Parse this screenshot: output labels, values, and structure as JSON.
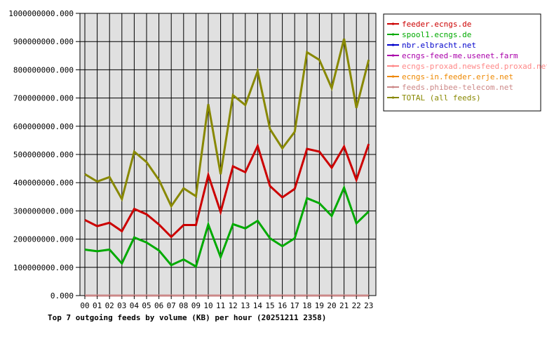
{
  "chart_data": {
    "type": "line",
    "title": "Top 7 outgoing feeds by volume (KB) per hour (20251211 2358)",
    "xlabel": "",
    "ylabel": "",
    "ylim": [
      0,
      1000000000
    ],
    "y_ticks": [
      0,
      100000000,
      200000000,
      300000000,
      400000000,
      500000000,
      600000000,
      700000000,
      800000000,
      900000000,
      1000000000
    ],
    "y_tick_labels": [
      "0.000",
      "100000000.000",
      "200000000.000",
      "300000000.000",
      "400000000.000",
      "500000000.000",
      "600000000.000",
      "700000000.000",
      "800000000.000",
      "900000000.000",
      "1000000000.000"
    ],
    "categories": [
      "00",
      "01",
      "02",
      "03",
      "04",
      "05",
      "06",
      "07",
      "08",
      "09",
      "10",
      "11",
      "12",
      "13",
      "14",
      "15",
      "16",
      "17",
      "18",
      "19",
      "20",
      "21",
      "22",
      "23"
    ],
    "grid": true,
    "legend_position": "right",
    "colors": {
      "plot_background": "#e0e0e0",
      "grid": "#000000"
    },
    "series": [
      {
        "name": "feeder.ecngs.de",
        "color": "#cc0000",
        "values": [
          268000000,
          246000000,
          258000000,
          228000000,
          307000000,
          288000000,
          252000000,
          208000000,
          250000000,
          250000000,
          427000000,
          296000000,
          458000000,
          437000000,
          530000000,
          388000000,
          348000000,
          378000000,
          520000000,
          510000000,
          453000000,
          528000000,
          410000000,
          537000000
        ]
      },
      {
        "name": "spool1.ecngs.de",
        "color": "#00aa00",
        "values": [
          163000000,
          157000000,
          163000000,
          114000000,
          206000000,
          188000000,
          160000000,
          108000000,
          128000000,
          103000000,
          252000000,
          136000000,
          253000000,
          238000000,
          265000000,
          203000000,
          175000000,
          203000000,
          345000000,
          327000000,
          282000000,
          382000000,
          256000000,
          298000000
        ]
      },
      {
        "name": "nbr.elbracht.net",
        "color": "#0000cc",
        "values": [
          0,
          0,
          0,
          0,
          0,
          0,
          0,
          0,
          0,
          0,
          0,
          0,
          0,
          0,
          0,
          0,
          0,
          0,
          0,
          0,
          0,
          0,
          0,
          0
        ]
      },
      {
        "name": "ecngs-feed-me.usenet.farm",
        "color": "#aa00aa",
        "values": [
          0,
          0,
          0,
          0,
          0,
          0,
          0,
          0,
          0,
          0,
          0,
          0,
          0,
          0,
          0,
          0,
          0,
          0,
          0,
          0,
          0,
          0,
          0,
          0
        ]
      },
      {
        "name": "ecngs-proxad.newsfeed.proxad.net",
        "color": "#ff8888",
        "values": [
          0,
          0,
          0,
          0,
          0,
          0,
          0,
          0,
          0,
          0,
          0,
          0,
          0,
          0,
          0,
          0,
          0,
          0,
          0,
          0,
          0,
          0,
          0,
          0
        ]
      },
      {
        "name": "ecngs-in.feeder.erje.net",
        "color": "#ee8800",
        "values": [
          0,
          0,
          0,
          0,
          0,
          0,
          0,
          0,
          0,
          0,
          0,
          0,
          0,
          0,
          0,
          0,
          0,
          0,
          0,
          0,
          0,
          0,
          0,
          0
        ]
      },
      {
        "name": "feeds.phibee-telecom.net",
        "color": "#cc8888",
        "values": [
          0,
          0,
          0,
          0,
          0,
          0,
          0,
          0,
          0,
          0,
          0,
          0,
          0,
          0,
          0,
          0,
          0,
          0,
          0,
          0,
          0,
          0,
          0,
          0
        ]
      },
      {
        "name": "TOTAL (all feeds)",
        "color": "#888800",
        "values": [
          430000000,
          404000000,
          420000000,
          342000000,
          510000000,
          473000000,
          410000000,
          317000000,
          380000000,
          352000000,
          678000000,
          430000000,
          710000000,
          675000000,
          795000000,
          590000000,
          522000000,
          580000000,
          862000000,
          835000000,
          735000000,
          910000000,
          665000000,
          835000000
        ]
      }
    ]
  }
}
